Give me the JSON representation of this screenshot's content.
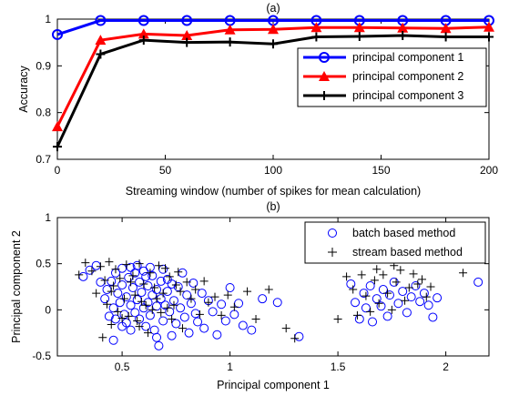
{
  "chart_data": [
    {
      "type": "line",
      "title": "(a)",
      "xlabel": "Streaming window (number of spikes for mean calculation)",
      "ylabel": "Accuracy",
      "xlim": [
        0,
        200
      ],
      "ylim": [
        0.7,
        1.0
      ],
      "xticks": [
        "0",
        "50",
        "100",
        "150",
        "200"
      ],
      "yticks": [
        "0.7",
        "0.8",
        "0.9",
        "1"
      ],
      "x": [
        0,
        20,
        40,
        60,
        80,
        100,
        120,
        140,
        160,
        180,
        200
      ],
      "legend_position": "right",
      "series": [
        {
          "name": "principal component 1",
          "color": "#0000ff",
          "marker": "circle",
          "values": [
            0.967,
            0.997,
            0.997,
            0.997,
            0.997,
            0.997,
            0.997,
            0.997,
            0.997,
            0.997,
            0.997
          ]
        },
        {
          "name": "principal component 2",
          "color": "#ff0000",
          "marker": "triangle",
          "values": [
            0.77,
            0.955,
            0.968,
            0.965,
            0.977,
            0.978,
            0.982,
            0.982,
            0.981,
            0.98,
            0.983
          ]
        },
        {
          "name": "principal component 3",
          "color": "#000000",
          "marker": "plus",
          "values": [
            0.727,
            0.925,
            0.955,
            0.95,
            0.951,
            0.947,
            0.962,
            0.963,
            0.965,
            0.962,
            0.962
          ]
        }
      ]
    },
    {
      "type": "scatter",
      "title": "(b)",
      "xlabel": "Principal component 1",
      "ylabel": "Principal component 2",
      "xlim": [
        0.2,
        2.2
      ],
      "ylim": [
        -0.5,
        1.0
      ],
      "xticks": [
        "0.5",
        "1",
        "1.5",
        "2"
      ],
      "xtick_values": [
        0.5,
        1.0,
        1.5,
        2.0
      ],
      "yticks": [
        "-0.5",
        "0",
        "0.5",
        "1"
      ],
      "ytick_values": [
        -0.5,
        0,
        0.5,
        1.0
      ],
      "legend_position": "top-right",
      "series": [
        {
          "name": "batch based method",
          "color": "#0000ff",
          "marker": "circle",
          "points": [
            [
              0.32,
              0.36
            ],
            [
              0.35,
              0.43
            ],
            [
              0.38,
              0.48
            ],
            [
              0.4,
              0.3
            ],
            [
              0.42,
              0.12
            ],
            [
              0.43,
              0.22
            ],
            [
              0.44,
              -0.07
            ],
            [
              0.45,
              0.31
            ],
            [
              0.46,
              0.02
            ],
            [
              0.46,
              -0.33
            ],
            [
              0.47,
              0.4
            ],
            [
              0.48,
              0.18
            ],
            [
              0.49,
              0.08
            ],
            [
              0.5,
              0.45
            ],
            [
              0.5,
              0.27
            ],
            [
              0.51,
              -0.05
            ],
            [
              0.52,
              0.14
            ],
            [
              0.52,
              -0.14
            ],
            [
              0.53,
              0.35
            ],
            [
              0.54,
              0.05
            ],
            [
              0.54,
              0.46
            ],
            [
              0.55,
              0.24
            ],
            [
              0.56,
              -0.03
            ],
            [
              0.56,
              0.4
            ],
            [
              0.57,
              0.11
            ],
            [
              0.58,
              -0.1
            ],
            [
              0.58,
              0.3
            ],
            [
              0.59,
              0.19
            ],
            [
              0.6,
              0.02
            ],
            [
              0.6,
              0.42
            ],
            [
              0.61,
              -0.18
            ],
            [
              0.62,
              0.26
            ],
            [
              0.62,
              0.08
            ],
            [
              0.63,
              -0.06
            ],
            [
              0.64,
              0.16
            ],
            [
              0.64,
              0.37
            ],
            [
              0.65,
              -0.22
            ],
            [
              0.66,
              0.04
            ],
            [
              0.66,
              0.22
            ],
            [
              0.67,
              -0.39
            ],
            [
              0.68,
              0.12
            ],
            [
              0.68,
              0.31
            ],
            [
              0.69,
              -0.12
            ],
            [
              0.7,
              0.05
            ],
            [
              0.71,
              0.2
            ],
            [
              0.72,
              -0.02
            ],
            [
              0.73,
              0.28
            ],
            [
              0.74,
              0.1
            ],
            [
              0.75,
              -0.15
            ],
            [
              0.76,
              0.25
            ],
            [
              0.77,
              0.02
            ],
            [
              0.78,
              0.4
            ],
            [
              0.79,
              -0.08
            ],
            [
              0.8,
              0.16
            ],
            [
              0.81,
              -0.25
            ],
            [
              0.82,
              0.07
            ],
            [
              0.83,
              0.29
            ],
            [
              0.84,
              -0.04
            ],
            [
              0.85,
              -0.13
            ],
            [
              0.87,
              0.18
            ],
            [
              0.88,
              -0.2
            ],
            [
              0.9,
              0.1
            ],
            [
              0.92,
              -0.02
            ],
            [
              0.94,
              -0.27
            ],
            [
              0.96,
              0.06
            ],
            [
              0.98,
              -0.12
            ],
            [
              1.0,
              0.24
            ],
            [
              1.02,
              -0.05
            ],
            [
              1.04,
              0.07
            ],
            [
              1.06,
              -0.17
            ],
            [
              1.1,
              -0.22
            ],
            [
              1.15,
              0.12
            ],
            [
              1.22,
              0.08
            ],
            [
              1.32,
              -0.29
            ],
            [
              1.56,
              0.28
            ],
            [
              1.58,
              0.08
            ],
            [
              1.6,
              -0.1
            ],
            [
              1.62,
              0.18
            ],
            [
              1.63,
              0.02
            ],
            [
              1.65,
              0.26
            ],
            [
              1.66,
              -0.13
            ],
            [
              1.68,
              0.12
            ],
            [
              1.7,
              0.04
            ],
            [
              1.71,
              0.22
            ],
            [
              1.73,
              -0.07
            ],
            [
              1.74,
              0.16
            ],
            [
              1.76,
              0.3
            ],
            [
              1.78,
              0.07
            ],
            [
              1.8,
              0.2
            ],
            [
              1.82,
              -0.03
            ],
            [
              1.84,
              0.14
            ],
            [
              1.86,
              0.26
            ],
            [
              1.88,
              0.09
            ],
            [
              1.9,
              0.18
            ],
            [
              1.92,
              0.05
            ],
            [
              1.94,
              -0.08
            ],
            [
              1.96,
              0.13
            ],
            [
              2.15,
              0.3
            ],
            [
              0.54,
              -0.22
            ],
            [
              0.57,
              0.48
            ],
            [
              0.61,
              0.36
            ],
            [
              0.66,
              -0.3
            ],
            [
              0.71,
              0.33
            ],
            [
              0.63,
              0.46
            ],
            [
              0.5,
              -0.18
            ],
            [
              0.47,
              -0.1
            ],
            [
              0.73,
              -0.28
            ],
            [
              0.69,
              0.44
            ]
          ]
        },
        {
          "name": "stream based method",
          "color": "#000000",
          "marker": "plus",
          "points": [
            [
              0.3,
              0.38
            ],
            [
              0.33,
              0.51
            ],
            [
              0.36,
              0.42
            ],
            [
              0.38,
              0.18
            ],
            [
              0.4,
              0.47
            ],
            [
              0.42,
              0.32
            ],
            [
              0.43,
              0.06
            ],
            [
              0.44,
              0.52
            ],
            [
              0.45,
              -0.16
            ],
            [
              0.46,
              0.26
            ],
            [
              0.47,
              0.44
            ],
            [
              0.48,
              -0.02
            ],
            [
              0.49,
              0.34
            ],
            [
              0.51,
              0.12
            ],
            [
              0.52,
              0.49
            ],
            [
              0.53,
              -0.07
            ],
            [
              0.55,
              0.37
            ],
            [
              0.56,
              0.16
            ],
            [
              0.57,
              -0.12
            ],
            [
              0.58,
              0.5
            ],
            [
              0.59,
              0.09
            ],
            [
              0.6,
              0.28
            ],
            [
              0.62,
              -0.25
            ],
            [
              0.63,
              0.4
            ],
            [
              0.64,
              0.0
            ],
            [
              0.65,
              0.24
            ],
            [
              0.67,
              0.48
            ],
            [
              0.68,
              -0.03
            ],
            [
              0.69,
              0.18
            ],
            [
              0.7,
              0.45
            ],
            [
              0.72,
              0.36
            ],
            [
              0.73,
              -0.1
            ],
            [
              0.74,
              0.05
            ],
            [
              0.76,
              0.41
            ],
            [
              0.77,
              0.2
            ],
            [
              0.78,
              -0.2
            ],
            [
              0.8,
              0.3
            ],
            [
              0.82,
              0.12
            ],
            [
              0.84,
              0.22
            ],
            [
              0.86,
              -0.05
            ],
            [
              0.88,
              0.31
            ],
            [
              0.9,
              0.08
            ],
            [
              0.93,
              0.14
            ],
            [
              0.96,
              -0.06
            ],
            [
              0.99,
              0.16
            ],
            [
              1.02,
              0.03
            ],
            [
              1.08,
              0.2
            ],
            [
              1.12,
              -0.1
            ],
            [
              1.18,
              0.22
            ],
            [
              1.26,
              -0.2
            ],
            [
              1.3,
              -0.31
            ],
            [
              1.5,
              -0.1
            ],
            [
              1.54,
              0.36
            ],
            [
              1.57,
              0.22
            ],
            [
              1.59,
              -0.06
            ],
            [
              1.61,
              0.38
            ],
            [
              1.63,
              0.15
            ],
            [
              1.65,
              -0.02
            ],
            [
              1.67,
              0.32
            ],
            [
              1.69,
              0.07
            ],
            [
              1.71,
              0.38
            ],
            [
              1.73,
              0.18
            ],
            [
              1.75,
              0.0
            ],
            [
              1.77,
              0.3
            ],
            [
              1.79,
              0.43
            ],
            [
              1.81,
              0.1
            ],
            [
              1.83,
              0.24
            ],
            [
              1.85,
              0.39
            ],
            [
              1.87,
              0.28
            ],
            [
              1.89,
              0.33
            ],
            [
              1.91,
              0.14
            ],
            [
              1.93,
              0.25
            ],
            [
              2.08,
              0.4
            ],
            [
              0.41,
              -0.3
            ],
            [
              0.54,
              0.3
            ],
            [
              0.61,
              0.05
            ],
            [
              0.66,
              0.12
            ],
            [
              0.71,
              0.02
            ],
            [
              0.58,
              -0.18
            ],
            [
              0.5,
              -0.09
            ],
            [
              0.75,
              0.27
            ],
            [
              0.45,
              0.2
            ],
            [
              1.68,
              0.44
            ],
            [
              1.76,
              0.48
            ]
          ]
        }
      ]
    }
  ]
}
